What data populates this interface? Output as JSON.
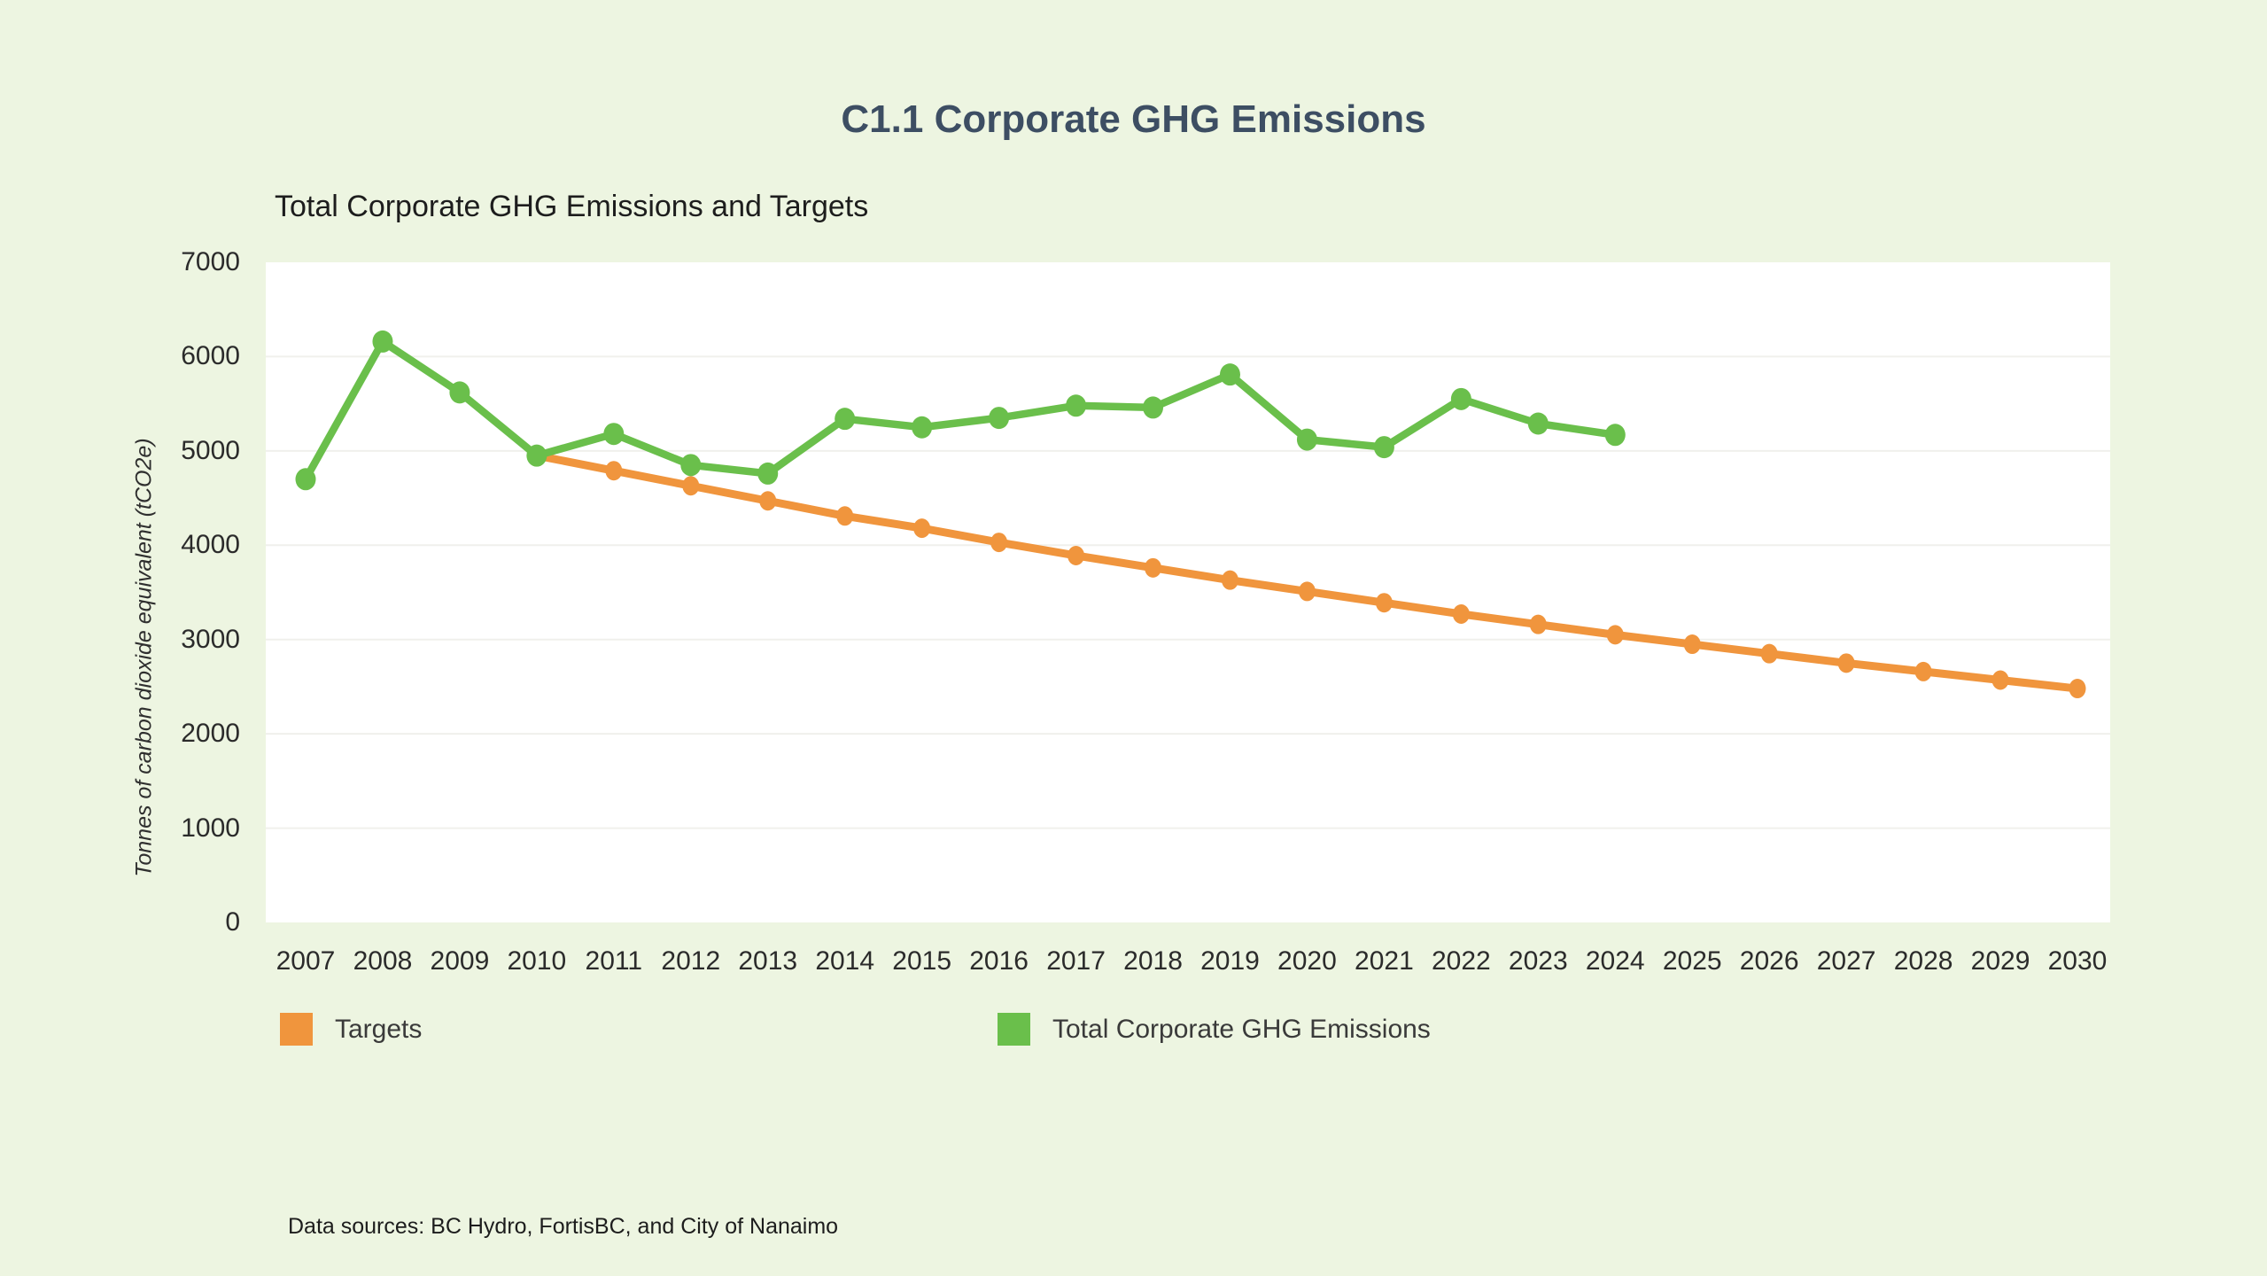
{
  "page": {
    "title": "C1.1 Corporate GHG Emissions",
    "title_color": "#3D4E63",
    "background_color": "#EDF5E1",
    "footer": "Data sources: BC Hydro, FortisBC, and City of Nanaimo"
  },
  "chart_data": {
    "type": "line",
    "title": "Total Corporate GHG Emissions and Targets",
    "xlabel": "",
    "ylabel": "Tonnes of carbon dioxide equivalent (tCO2e)",
    "ylim": [
      0,
      7000
    ],
    "yticks": [
      0,
      1000,
      2000,
      3000,
      4000,
      5000,
      6000,
      7000
    ],
    "grid": true,
    "plot_background": "#FFFFFF",
    "gridline_color": "#F0F0EC",
    "legend_position": "bottom",
    "categories": [
      2007,
      2008,
      2009,
      2010,
      2011,
      2012,
      2013,
      2014,
      2015,
      2016,
      2017,
      2018,
      2019,
      2020,
      2021,
      2022,
      2023,
      2024,
      2025,
      2026,
      2027,
      2028,
      2029,
      2030
    ],
    "series": [
      {
        "name": "Targets",
        "color": "#F0953D",
        "start_year": 2010,
        "values": [
          4950,
          4790,
          4630,
          4470,
          4310,
          4180,
          4030,
          3890,
          3760,
          3630,
          3510,
          3390,
          3270,
          3160,
          3050,
          2950,
          2850,
          2750,
          2660,
          2570,
          2480
        ]
      },
      {
        "name": "Total Corporate GHG Emissions",
        "color": "#6ABF4B",
        "start_year": 2007,
        "values": [
          4700,
          6160,
          5620,
          4950,
          5180,
          4850,
          4760,
          5340,
          5250,
          5350,
          5480,
          5460,
          5810,
          5120,
          5040,
          5550,
          5290,
          5170
        ]
      }
    ]
  }
}
